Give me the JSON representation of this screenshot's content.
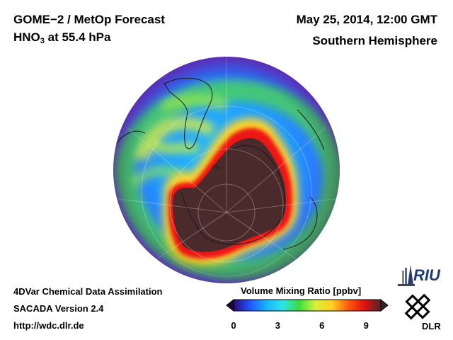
{
  "header": {
    "title_line1": "GOME−2 / MetOp Forecast",
    "species": "HNO",
    "species_sub": "3",
    "level": " at 55.4 hPa",
    "datetime": "May 25, 2014, 12:00 GMT",
    "region": "Southern Hemisphere"
  },
  "footer": {
    "line1": "4DVar Chemical Data Assimilation",
    "line2": "SACADA Version 2.4",
    "line3": "http://wdc.dlr.de"
  },
  "colorbar": {
    "title": "Volume Mixing Ratio [ppbv]",
    "ticks": [
      "0",
      "3",
      "6",
      "9"
    ],
    "tick_values": [
      0,
      3,
      6,
      9
    ],
    "range": [
      0,
      10
    ],
    "colors": [
      "#2a0a7a",
      "#1f55ff",
      "#18b4ff",
      "#2ee6e6",
      "#3cdc3c",
      "#d8f03c",
      "#ffd020",
      "#ff5a10",
      "#e01010",
      "#4a2a2a"
    ]
  },
  "logos": {
    "riu": "RIU",
    "dlr": "DLR"
  },
  "map": {
    "projection": "orthographic, south polar view",
    "ocean_color": "#1f8fff",
    "ocean_edge_color": "#8a3cf0",
    "polar_high_color": "#4a2a2a"
  }
}
